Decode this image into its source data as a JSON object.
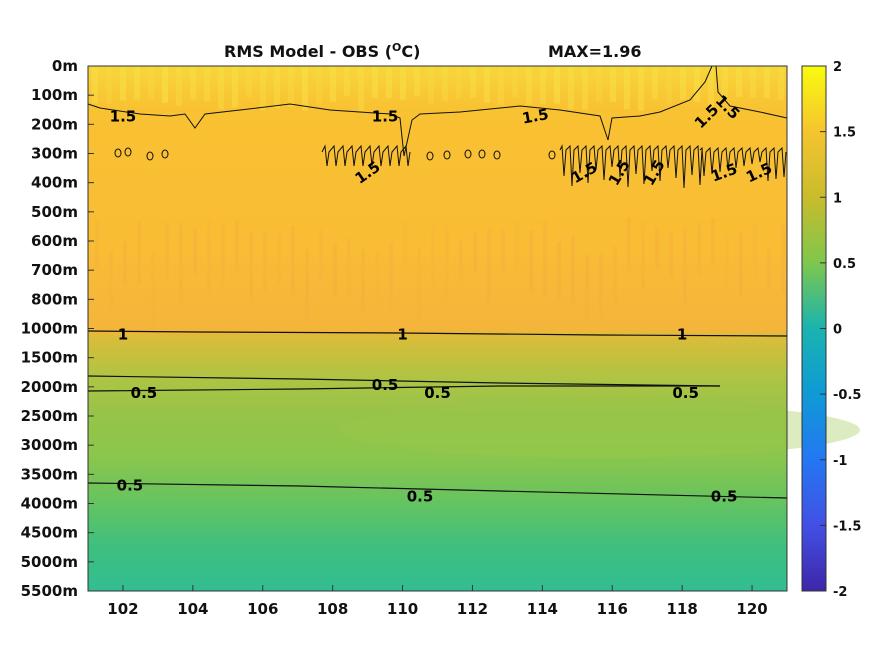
{
  "chart_data": {
    "type": "heatmap",
    "title": "RMS Model - OBS (",
    "title_unit_sup": "O",
    "title_unit_end": "C)",
    "max_label": "MAX=1.96",
    "x_ticks": [
      102,
      104,
      106,
      108,
      110,
      112,
      114,
      116,
      118,
      120
    ],
    "xlim": [
      101,
      121
    ],
    "y_tick_labels": [
      "0m",
      "100m",
      "200m",
      "300m",
      "400m",
      "500m",
      "600m",
      "700m",
      "800m",
      "1000m",
      "1500m",
      "2000m",
      "2500m",
      "3000m",
      "3500m",
      "4000m",
      "4500m",
      "5000m",
      "5500m"
    ],
    "colorbar": {
      "range": [
        -2,
        2
      ],
      "ticks": [
        "2",
        "1.5",
        "1",
        "0.5",
        "0",
        "-0.5",
        "-1",
        "-1.5",
        "-2"
      ],
      "colormap": "parula"
    },
    "depth_profile_rms": [
      {
        "depth": "0m",
        "value": 1.7
      },
      {
        "depth": "200m",
        "value": 1.5
      },
      {
        "depth": "400m",
        "value": 1.45
      },
      {
        "depth": "600m",
        "value": 1.38
      },
      {
        "depth": "800m",
        "value": 1.3
      },
      {
        "depth": "1000m",
        "value": 1.0
      },
      {
        "depth": "1500m",
        "value": 0.75
      },
      {
        "depth": "2000m",
        "value": 0.55
      },
      {
        "depth": "3000m",
        "value": 0.6
      },
      {
        "depth": "4000m",
        "value": 0.45
      },
      {
        "depth": "5000m",
        "value": 0.25
      },
      {
        "depth": "5500m",
        "value": 0.2
      }
    ],
    "contour_labels": [
      {
        "text": "1.5",
        "x": 102.0,
        "depth": "200m"
      },
      {
        "text": "1.5",
        "x": 109.5,
        "depth": "200m"
      },
      {
        "text": "1.5",
        "x": 113.8,
        "depth": "200m"
      },
      {
        "text": "1.5",
        "x": 109.0,
        "depth": "400m"
      },
      {
        "text": "1.5",
        "x": 115.2,
        "depth": "400m"
      },
      {
        "text": "1.5",
        "x": 116.2,
        "depth": "400m"
      },
      {
        "text": "1.5",
        "x": 117.2,
        "depth": "400m"
      },
      {
        "text": "1.5",
        "x": 118.7,
        "depth": "200m"
      },
      {
        "text": "1.5",
        "x": 119.3,
        "depth": "100m"
      },
      {
        "text": "1.5",
        "x": 119.2,
        "depth": "400m"
      },
      {
        "text": "1.5",
        "x": 120.2,
        "depth": "400m"
      },
      {
        "text": "1",
        "x": 102.0,
        "depth": "1000m"
      },
      {
        "text": "1",
        "x": 110.0,
        "depth": "1000m"
      },
      {
        "text": "1",
        "x": 118.0,
        "depth": "1000m"
      },
      {
        "text": "0.5",
        "x": 102.6,
        "depth": "2000m"
      },
      {
        "text": "0.5",
        "x": 109.5,
        "depth": "2000m"
      },
      {
        "text": "0.5",
        "x": 111.0,
        "depth": "2000m"
      },
      {
        "text": "0.5",
        "x": 118.1,
        "depth": "2000m"
      },
      {
        "text": "0.5",
        "x": 102.2,
        "depth": "3500m"
      },
      {
        "text": "0.5",
        "x": 110.5,
        "depth": "4000m"
      },
      {
        "text": "0.5",
        "x": 119.2,
        "depth": "4000m"
      }
    ]
  }
}
